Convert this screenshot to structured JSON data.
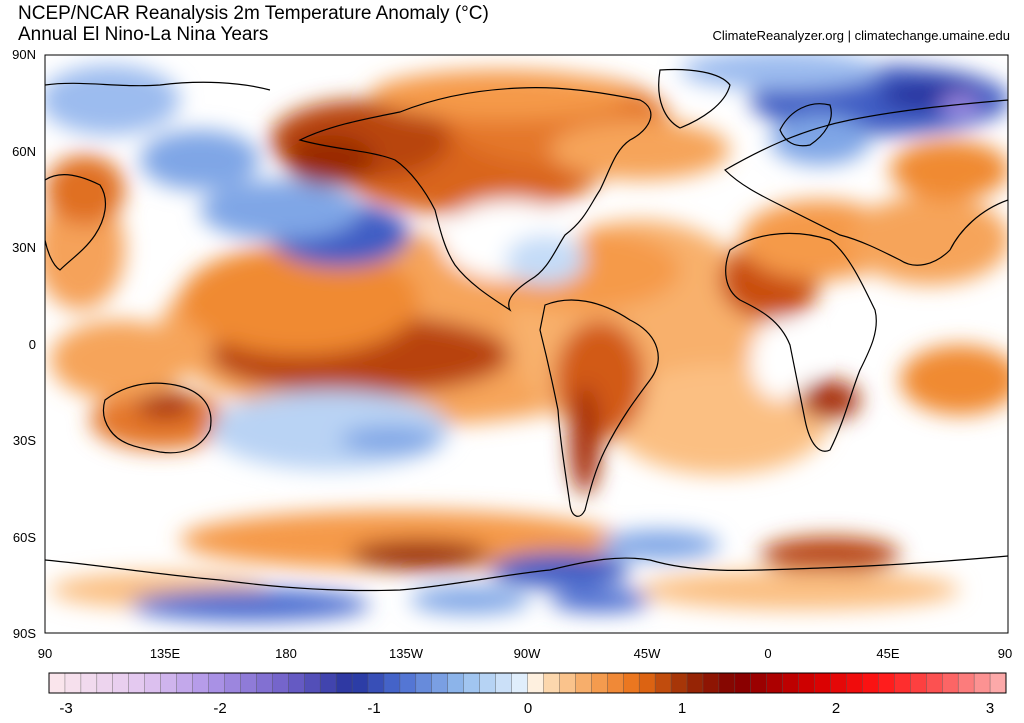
{
  "title": "NCEP/NCAR Reanalysis 2m Temperature Anomaly (°C)",
  "subtitle": "Annual El Nino-La Nina Years",
  "credit": "ClimateReanalyzer.org | climatechange.umaine.edu",
  "lat_labels": [
    "90N",
    "60N",
    "30N",
    "0",
    "30S",
    "60S",
    "90S"
  ],
  "lon_labels": [
    "90",
    "135E",
    "180",
    "135W",
    "90W",
    "45W",
    "0",
    "45E",
    "90"
  ],
  "colorbar": {
    "labels": [
      "-3",
      "-2",
      "-1",
      "0",
      "1",
      "2",
      "3"
    ],
    "min": -3,
    "max": 3,
    "steps": 60
  },
  "colors": {
    "cold_strong": "#26339e",
    "cold_mid": "#4a6cd0",
    "cold_light": "#c4dcf8",
    "neutral": "#ffffff",
    "warm_light": "#fcc98e",
    "warm_mid": "#e96e14",
    "warm_strong": "#9a2b06"
  }
}
